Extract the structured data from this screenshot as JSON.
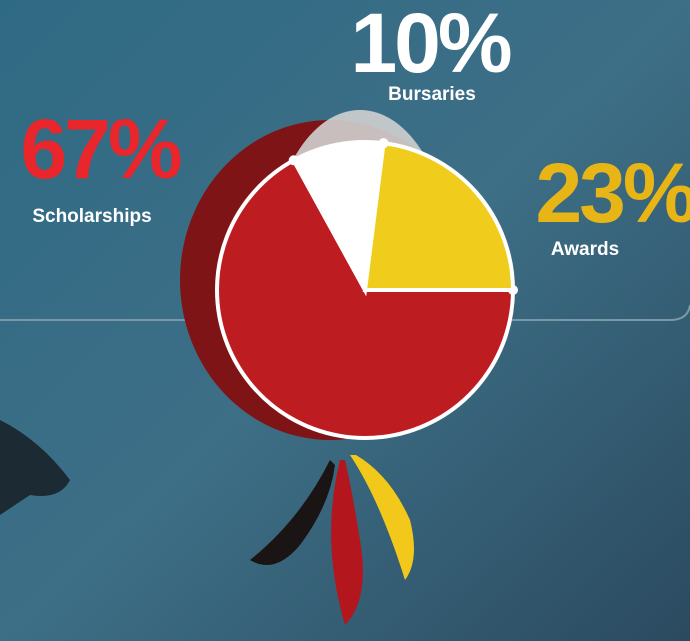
{
  "chart_data": {
    "type": "pie",
    "categories": [
      "Scholarships",
      "Bursaries",
      "Awards"
    ],
    "values": [
      67,
      10,
      23
    ],
    "value_labels": [
      "67%",
      "10%",
      "23%"
    ],
    "colors": [
      "#bd1c21",
      "#ffffff",
      "#f0cd1c"
    ],
    "label_colors": [
      "#e8262b",
      "#ffffff",
      "#e8b517"
    ]
  }
}
